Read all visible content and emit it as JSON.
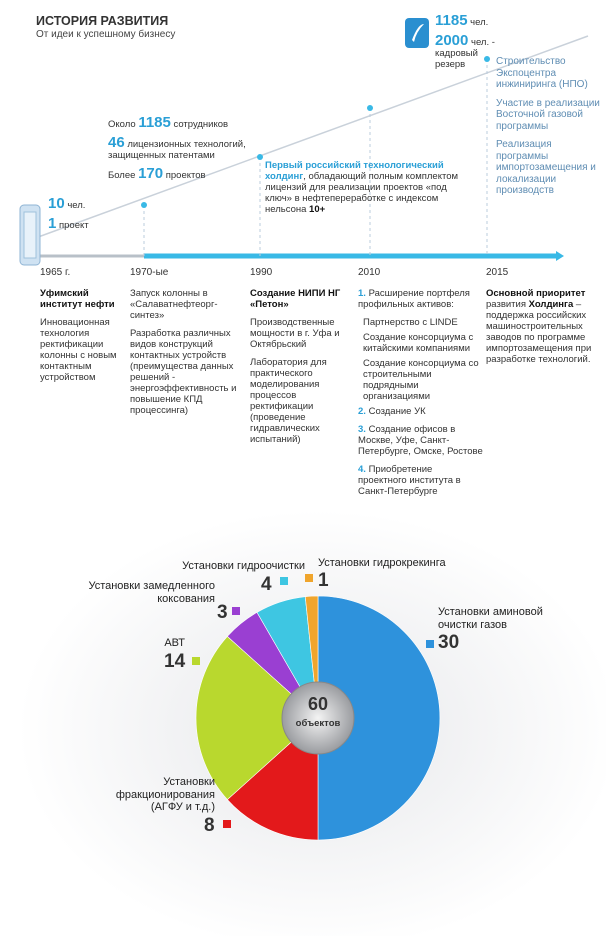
{
  "header": {
    "title": "ИСТОРИЯ РАЗВИТИЯ",
    "subtitle": "От идеи к успешному бизнесу"
  },
  "timeline": {
    "years": [
      "1965 г.",
      "1970-ые",
      "1990",
      "2010",
      "2015"
    ],
    "upper": {
      "start": [
        {
          "s": [
            {
              "t": "10",
              "big": true
            },
            {
              "t": " чел."
            }
          ]
        },
        {
          "s": [
            {
              "t": "1",
              "big": true
            },
            {
              "t": " проект"
            }
          ]
        }
      ],
      "seventies": [
        {
          "s": [
            {
              "t": "Около "
            },
            {
              "t": "1185",
              "big": true
            },
            {
              "t": " сотрудников"
            }
          ]
        },
        {
          "s": [
            {
              "t": "46",
              "big": true
            },
            {
              "t": " лицензионных технологий, защищенных патентами"
            }
          ]
        },
        {
          "s": [
            {
              "t": "Более "
            },
            {
              "t": "170",
              "big": true
            },
            {
              "t": " проектов"
            }
          ]
        }
      ],
      "nineties": [
        {
          "s": [
            {
              "t": "Первый российский технологический холдинг",
              "blue": true
            },
            {
              "t": ", обладающий полным комплектом лицензий для реализации проектов «под ключ» в нефтепереработке с индексом нельсона "
            },
            {
              "t": "10+",
              "bold": true
            }
          ]
        }
      ],
      "staff": [
        {
          "s": [
            {
              "t": "1185",
              "big": true
            },
            {
              "t": " чел."
            }
          ]
        },
        {
          "s": [
            {
              "t": "2000",
              "big": true
            },
            {
              "t": " чел. - кадровый резерв"
            }
          ]
        }
      ],
      "projects": [
        {
          "s": [
            {
              "t": "Строительство Экспоцентра инжиниринга (НПО)"
            }
          ]
        },
        {
          "s": [
            {
              "t": "Участие в реализации Восточной газовой программы"
            }
          ]
        },
        {
          "s": [
            {
              "t": "Реализация программы импортозамещения и локализации производств"
            }
          ]
        }
      ]
    },
    "columns": [
      [
        {
          "s": [
            {
              "t": "Уфимский институт нефти",
              "bold": true
            }
          ]
        },
        {
          "s": [
            {
              "t": "Инновационная технология ректификации колонны с новым контактным устройством"
            }
          ]
        }
      ],
      [
        {
          "s": [
            {
              "t": "Запуск колонны в «Салаватнефтеорг-синтез»"
            }
          ]
        },
        {
          "s": [
            {
              "t": "Разработка различных видов конструкций контактных устройств (преимущества данных решений - энергоэффективность и повышение КПД процессинга)"
            }
          ]
        }
      ],
      [
        {
          "s": [
            {
              "t": "Создание НИПИ НГ «Петон»",
              "bold": true
            }
          ]
        },
        {
          "s": [
            {
              "t": "Производственные мощности в г. Уфа и Октябрьский"
            }
          ]
        },
        {
          "s": [
            {
              "t": "Лаборатория для практического моделирования процессов ректификации (проведение гидравлических испытаний)"
            }
          ]
        }
      ],
      [
        {
          "s": [
            {
              "t": "1.",
              "blue": true
            },
            {
              "t": " Расширение портфеля профильных активов:"
            }
          ]
        },
        {
          "sub": true,
          "s": [
            {
              "t": "Партнерство с LINDE"
            }
          ]
        },
        {
          "sub": true,
          "s": [
            {
              "t": "Создание консорциума с китайскими компаниями"
            }
          ]
        },
        {
          "sub": true,
          "s": [
            {
              "t": "Создание консорциума со строительными подрядными организациями"
            }
          ]
        },
        {
          "s": [
            {
              "t": "2.",
              "blue": true
            },
            {
              "t": " Создание УК"
            }
          ]
        },
        {
          "s": [
            {
              "t": "3.",
              "blue": true
            },
            {
              "t": " Создание офисов в Москве, Уфе, Санкт-Петербурге, Омске, Ростове"
            }
          ]
        },
        {
          "s": [
            {
              "t": "4.",
              "blue": true
            },
            {
              "t": " Приобретение проектного института в Санкт-Петербурге"
            }
          ]
        }
      ],
      [
        {
          "s": [
            {
              "t": "Основной приоритет",
              "bold": true
            },
            {
              "t": " развития "
            },
            {
              "t": "Холдинга",
              "bold": true
            },
            {
              "t": " – поддержка российских машиностроительных заводов по программе импортозамещения при разработке технологий."
            }
          ]
        }
      ]
    ]
  },
  "chart_data": {
    "type": "pie",
    "categories": [
      "Установки аминовой очистки газов",
      "Установки фракционирования (АГФУ и т.д.)",
      "АВТ",
      "Установки замедленного коксования",
      "Установки гидроочистки",
      "Установки гидрокрекинга"
    ],
    "values": [
      30,
      8,
      14,
      3,
      4,
      1
    ],
    "colors": [
      "#2e92dc",
      "#e3191b",
      "#b9d82e",
      "#9a3fd2",
      "#3ec6e2",
      "#f0a52c"
    ],
    "total": 60,
    "total_label": "объектов"
  }
}
